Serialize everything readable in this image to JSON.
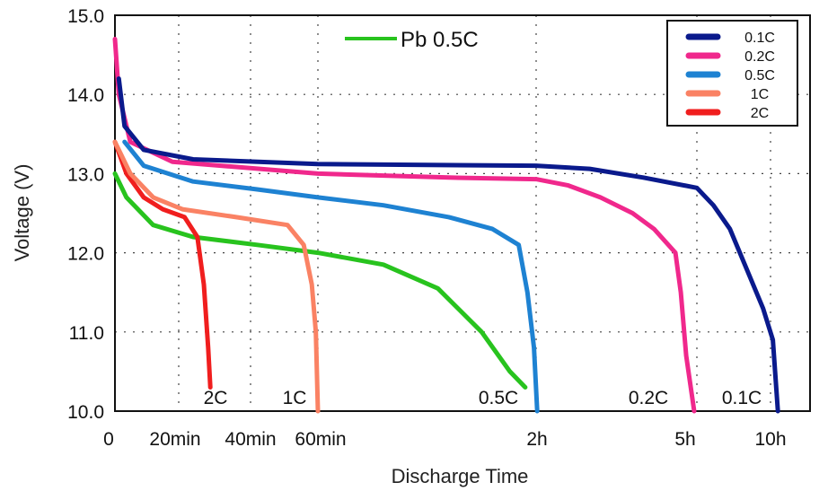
{
  "chart_data": {
    "type": "line",
    "title": "",
    "xlabel": "Discharge Time",
    "ylabel": "Voltage (V)",
    "ylim": [
      10.0,
      15.0
    ],
    "y_ticks": [
      "10.0",
      "11.0",
      "12.0",
      "13.0",
      "14.0",
      "15.0"
    ],
    "x_unit": "hours",
    "x_scale_note": "non-linear axis; tick labels map to hours",
    "x_ticks": [
      {
        "label": "0",
        "hours": 0
      },
      {
        "label": "20min",
        "hours": 0.333
      },
      {
        "label": "40min",
        "hours": 0.667
      },
      {
        "label": "60min",
        "hours": 1.0
      },
      {
        "label": "2h",
        "hours": 2.0
      },
      {
        "label": "5h",
        "hours": 5.0
      },
      {
        "label": "10h",
        "hours": 10.0
      }
    ],
    "grid": true,
    "legend": {
      "placement": "top-right",
      "entries": [
        {
          "label": "0.1C",
          "color": "#0a1a8c"
        },
        {
          "label": "0.2C",
          "color": "#f0288c"
        },
        {
          "label": "0.5C",
          "color": "#1e82d2"
        },
        {
          "label": "1C",
          "color": "#fa8264"
        },
        {
          "label": "2C",
          "color": "#f01e1e"
        }
      ]
    },
    "annotation_legend": {
      "label": "Pb 0.5C",
      "color": "#28c31e"
    },
    "series": [
      {
        "name": "0.1C",
        "curve_label": "0.1C",
        "color": "#0a1a8c",
        "points": [
          [
            0.02,
            14.2
          ],
          [
            0.05,
            13.6
          ],
          [
            0.15,
            13.3
          ],
          [
            0.4,
            13.18
          ],
          [
            1.0,
            13.12
          ],
          [
            2.0,
            13.1
          ],
          [
            3.0,
            13.06
          ],
          [
            4.0,
            12.95
          ],
          [
            5.0,
            12.82
          ],
          [
            6.0,
            12.6
          ],
          [
            7.0,
            12.3
          ],
          [
            8.0,
            11.8
          ],
          [
            9.0,
            11.3
          ],
          [
            9.6,
            10.9
          ],
          [
            9.9,
            10.0
          ]
        ]
      },
      {
        "name": "0.2C",
        "curve_label": "0.2C",
        "color": "#f0288c",
        "points": [
          [
            0.0,
            14.7
          ],
          [
            0.02,
            14.0
          ],
          [
            0.08,
            13.4
          ],
          [
            0.3,
            13.15
          ],
          [
            1.0,
            13.0
          ],
          [
            1.6,
            12.95
          ],
          [
            2.0,
            12.93
          ],
          [
            2.6,
            12.85
          ],
          [
            3.2,
            12.7
          ],
          [
            3.8,
            12.5
          ],
          [
            4.2,
            12.3
          ],
          [
            4.6,
            12.0
          ],
          [
            4.7,
            11.5
          ],
          [
            4.8,
            10.7
          ],
          [
            4.95,
            10.0
          ]
        ]
      },
      {
        "name": "0.5C",
        "curve_label": "0.5C",
        "color": "#1e82d2",
        "points": [
          [
            0.05,
            13.4
          ],
          [
            0.15,
            13.1
          ],
          [
            0.4,
            12.9
          ],
          [
            0.7,
            12.8
          ],
          [
            1.0,
            12.7
          ],
          [
            1.3,
            12.6
          ],
          [
            1.6,
            12.45
          ],
          [
            1.8,
            12.3
          ],
          [
            1.92,
            12.1
          ],
          [
            1.96,
            11.5
          ],
          [
            1.99,
            10.8
          ],
          [
            2.02,
            10.0
          ]
        ]
      },
      {
        "name": "1C",
        "curve_label": "1C",
        "color": "#fa8264",
        "points": [
          [
            0.0,
            13.4
          ],
          [
            0.08,
            13.0
          ],
          [
            0.2,
            12.7
          ],
          [
            0.35,
            12.55
          ],
          [
            0.6,
            12.45
          ],
          [
            0.85,
            12.35
          ],
          [
            0.93,
            12.1
          ],
          [
            0.97,
            11.6
          ],
          [
            0.99,
            11.0
          ],
          [
            1.0,
            10.0
          ]
        ]
      },
      {
        "name": "2C",
        "curve_label": "2C",
        "color": "#f01e1e",
        "points": [
          [
            0.0,
            13.4
          ],
          [
            0.06,
            13.0
          ],
          [
            0.15,
            12.7
          ],
          [
            0.25,
            12.55
          ],
          [
            0.36,
            12.45
          ],
          [
            0.42,
            12.2
          ],
          [
            0.45,
            11.6
          ],
          [
            0.47,
            10.8
          ],
          [
            0.48,
            10.3
          ]
        ]
      },
      {
        "name": "Pb 0.5C",
        "curve_label": "0.5C",
        "color": "#28c31e",
        "points": [
          [
            0.0,
            13.0
          ],
          [
            0.06,
            12.7
          ],
          [
            0.2,
            12.35
          ],
          [
            0.4,
            12.2
          ],
          [
            0.7,
            12.1
          ],
          [
            1.0,
            12.0
          ],
          [
            1.3,
            11.85
          ],
          [
            1.55,
            11.55
          ],
          [
            1.75,
            11.0
          ],
          [
            1.88,
            10.5
          ],
          [
            1.95,
            10.3
          ]
        ]
      }
    ]
  }
}
